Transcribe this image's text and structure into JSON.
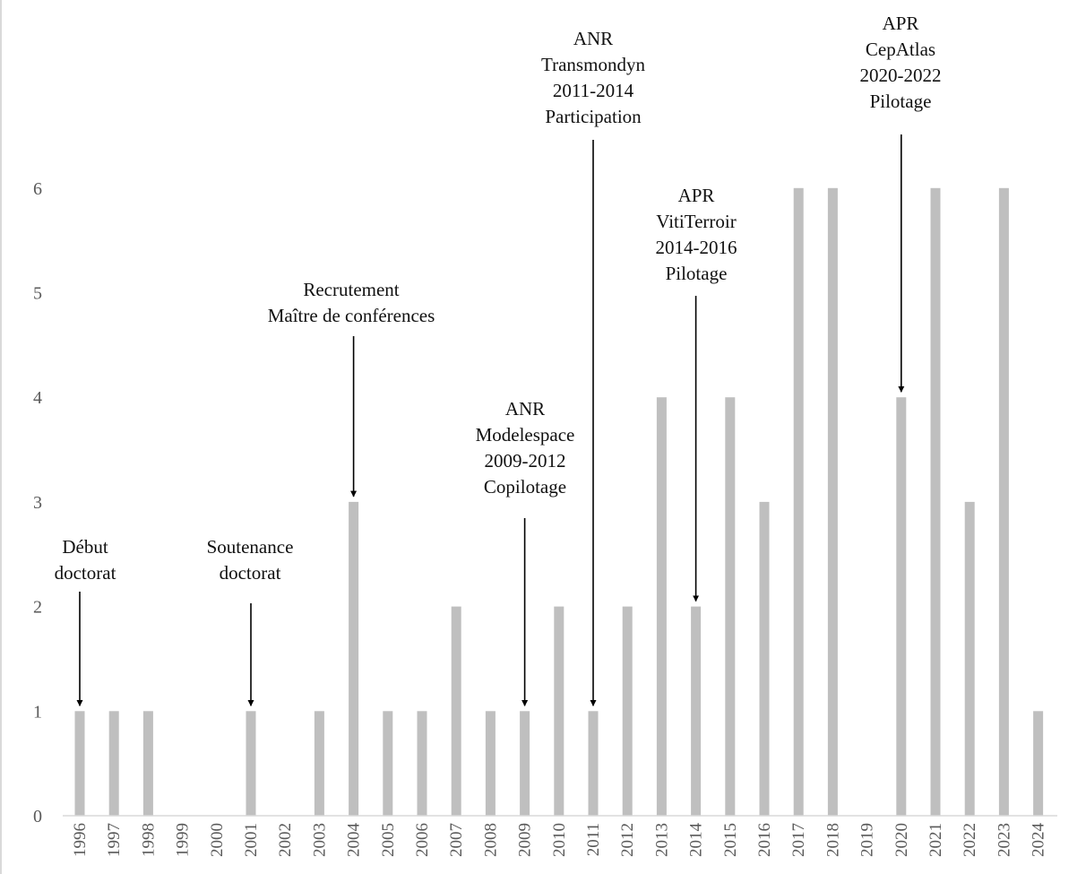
{
  "chart_data": {
    "type": "bar",
    "title": "",
    "xlabel": "",
    "ylabel": "",
    "ylim": [
      0,
      6
    ],
    "yticks": [
      "0",
      "1",
      "2",
      "3",
      "4",
      "5",
      "6"
    ],
    "grid": false,
    "categories": [
      "1996",
      "1997",
      "1998",
      "1999",
      "2000",
      "2001",
      "2002",
      "2003",
      "2004",
      "2005",
      "2006",
      "2007",
      "2008",
      "2009",
      "2010",
      "2011",
      "2012",
      "2013",
      "2014",
      "2015",
      "2016",
      "2017",
      "2018",
      "2019",
      "2020",
      "2021",
      "2022",
      "2023",
      "2024"
    ],
    "values": [
      1,
      1,
      1,
      0,
      0,
      1,
      0,
      1,
      3,
      1,
      1,
      2,
      1,
      1,
      2,
      1,
      2,
      4,
      2,
      4,
      3,
      6,
      6,
      0,
      4,
      6,
      3,
      6,
      1
    ],
    "bar_color": "#bfbfbf",
    "annotations": [
      {
        "year": "1996",
        "lines": [
          "Début",
          "doctorat"
        ]
      },
      {
        "year": "2001",
        "lines": [
          "Soutenance",
          "doctorat"
        ]
      },
      {
        "year": "2004",
        "lines": [
          "Recrutement",
          "Maître de conférences"
        ]
      },
      {
        "year": "2009",
        "lines": [
          "ANR",
          "Modelespace",
          "2009-2012",
          "Copilotage"
        ]
      },
      {
        "year": "2011",
        "lines": [
          "ANR",
          "Transmondyn",
          "2011-2014",
          "Participation"
        ]
      },
      {
        "year": "2014",
        "lines": [
          "APR",
          "VitiTerroir",
          "2014-2016",
          "Pilotage"
        ]
      },
      {
        "year": "2020",
        "lines": [
          "APR",
          "CepAtlas",
          "2020-2022",
          "Pilotage"
        ]
      }
    ]
  }
}
